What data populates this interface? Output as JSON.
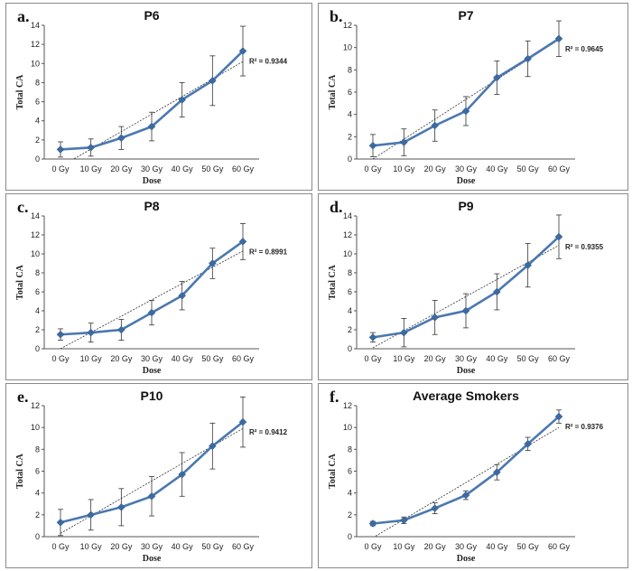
{
  "chart_data": [
    {
      "type": "line",
      "panel_label": "a.",
      "title": "P6",
      "xlabel": "Dose",
      "ylabel": "Total CA",
      "categories": [
        "0 Gy",
        "10 Gy",
        "20 Gy",
        "30 Gy",
        "40 Gy",
        "50 Gy",
        "60 Gy"
      ],
      "values": [
        1.0,
        1.2,
        2.2,
        3.4,
        6.2,
        8.2,
        11.3
      ],
      "errors": [
        0.8,
        0.9,
        1.2,
        1.5,
        1.8,
        2.6,
        2.6
      ],
      "trendline": [
        -0.8,
        1.0,
        2.9,
        4.7,
        6.5,
        8.4,
        10.2
      ],
      "r2": "R² = 0.9344",
      "ylim": [
        0,
        14
      ],
      "yticks": [
        0,
        2,
        4,
        6,
        8,
        10,
        12,
        14
      ]
    },
    {
      "type": "line",
      "panel_label": "b.",
      "title": "P7",
      "xlabel": "Dose",
      "ylabel": "Total CA",
      "categories": [
        "0 Gy",
        "10 Gy",
        "20 Gy",
        "30 Gy",
        "40 Gy",
        "50 Gy",
        "60 Gy"
      ],
      "values": [
        1.2,
        1.5,
        3.0,
        4.3,
        7.3,
        9.0,
        10.8
      ],
      "errors": [
        1.0,
        1.2,
        1.4,
        1.3,
        1.5,
        1.6,
        1.6
      ],
      "trendline": [
        0.0,
        1.8,
        3.6,
        5.3,
        7.1,
        8.9,
        10.7
      ],
      "r2": "R² = 0.9645",
      "ylim": [
        0,
        12
      ],
      "yticks": [
        0,
        2,
        4,
        6,
        8,
        10,
        12
      ]
    },
    {
      "type": "line",
      "panel_label": "c.",
      "title": "P8",
      "xlabel": "Dose",
      "ylabel": "Total CA",
      "categories": [
        "0 Gy",
        "10 Gy",
        "20 Gy",
        "30 Gy",
        "40 Gy",
        "50 Gy",
        "60 Gy"
      ],
      "values": [
        1.5,
        1.7,
        2.0,
        3.8,
        5.6,
        9.0,
        11.3
      ],
      "errors": [
        0.6,
        1.0,
        1.1,
        1.3,
        1.5,
        1.6,
        1.9
      ],
      "trendline": [
        0.0,
        1.7,
        3.4,
        5.2,
        6.9,
        8.6,
        10.3
      ],
      "r2": "R² = 0.8991",
      "ylim": [
        0,
        14
      ],
      "yticks": [
        0,
        2,
        4,
        6,
        8,
        10,
        12,
        14
      ]
    },
    {
      "type": "line",
      "panel_label": "d.",
      "title": "P9",
      "xlabel": "Dose",
      "ylabel": "Total CA",
      "categories": [
        "0 Gy",
        "10 Gy",
        "20 Gy",
        "30 Gy",
        "40 Gy",
        "50 Gy",
        "60 Gy"
      ],
      "values": [
        1.2,
        1.7,
        3.3,
        4.0,
        6.0,
        8.8,
        11.8
      ],
      "errors": [
        0.5,
        1.5,
        1.8,
        1.8,
        1.9,
        2.3,
        2.3
      ],
      "trendline": [
        0.1,
        1.9,
        3.7,
        5.5,
        7.3,
        9.1,
        10.9
      ],
      "r2": "R² = 0.9355",
      "ylim": [
        0,
        14
      ],
      "yticks": [
        0,
        2,
        4,
        6,
        8,
        10,
        12,
        14
      ]
    },
    {
      "type": "line",
      "panel_label": "e.",
      "title": "P10",
      "xlabel": "Dose",
      "ylabel": "Total CA",
      "categories": [
        "0 Gy",
        "10 Gy",
        "20 Gy",
        "30 Gy",
        "40 Gy",
        "50 Gy",
        "60 Gy"
      ],
      "values": [
        1.3,
        2.0,
        2.7,
        3.7,
        5.7,
        8.3,
        10.5
      ],
      "errors": [
        1.2,
        1.4,
        1.7,
        1.8,
        2.0,
        2.1,
        2.3
      ],
      "trendline": [
        0.3,
        1.9,
        3.5,
        5.1,
        6.7,
        8.3,
        9.9
      ],
      "r2": "R² = 0.9412",
      "ylim": [
        0,
        12
      ],
      "yticks": [
        0,
        2,
        4,
        6,
        8,
        10,
        12
      ]
    },
    {
      "type": "line",
      "panel_label": "f.",
      "title": "Average Smokers",
      "xlabel": "Dose",
      "ylabel": "Total CA",
      "categories": [
        "0 Gy",
        "10 Gy",
        "20 Gy",
        "30 Gy",
        "40 Gy",
        "50 Gy",
        "60 Gy"
      ],
      "values": [
        1.2,
        1.5,
        2.6,
        3.8,
        5.9,
        8.5,
        11.0
      ],
      "errors": [
        0.2,
        0.3,
        0.5,
        0.4,
        0.7,
        0.6,
        0.6
      ],
      "trendline": [
        -0.1,
        1.6,
        3.3,
        4.9,
        6.6,
        8.3,
        10.0
      ],
      "r2": "R² = 0.9376",
      "ylim": [
        0,
        12
      ],
      "yticks": [
        0,
        2,
        4,
        6,
        8,
        10,
        12
      ]
    }
  ],
  "style": {
    "series_color": "#4a78b0",
    "marker_color": "#3c6aa3",
    "error_color": "#333333",
    "trend_color": "#333333"
  }
}
